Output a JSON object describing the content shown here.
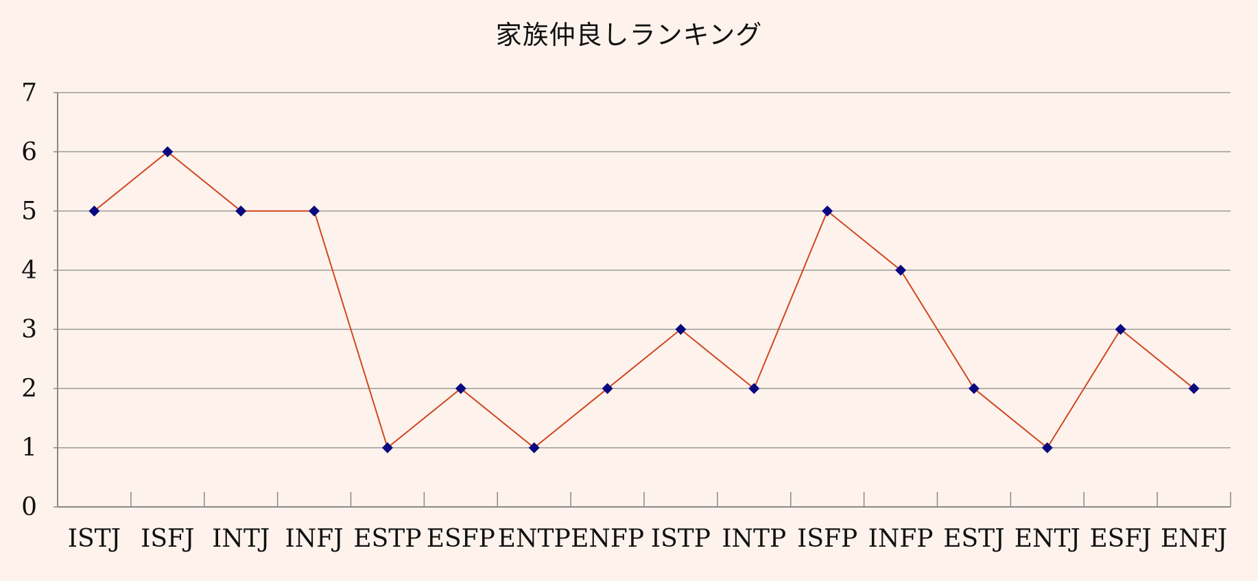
{
  "chart_data": {
    "type": "line",
    "title": "家族仲良しランキング",
    "xlabel": "",
    "ylabel": "",
    "categories": [
      "ISTJ",
      "ISFJ",
      "INTJ",
      "INFJ",
      "ESTP",
      "ESFP",
      "ENTP",
      "ENFP",
      "ISTP",
      "INTP",
      "ISFP",
      "INFP",
      "ESTJ",
      "ENTJ",
      "ESFJ",
      "ENFJ"
    ],
    "series": [
      {
        "values": [
          5,
          6,
          5,
          5,
          1,
          2,
          1,
          2,
          3,
          2,
          5,
          4,
          2,
          1,
          3,
          2
        ]
      }
    ],
    "ylim": [
      0,
      7
    ],
    "yticks": [
      "0",
      "1",
      "2",
      "3",
      "4",
      "5",
      "6",
      "7"
    ],
    "grid": true,
    "legend": "none",
    "colors": {
      "background": "#fdf3ec",
      "line": "#d2451e",
      "marker": "#0a0a80",
      "grid": "#9a9a9a",
      "axis": "#888888"
    }
  }
}
